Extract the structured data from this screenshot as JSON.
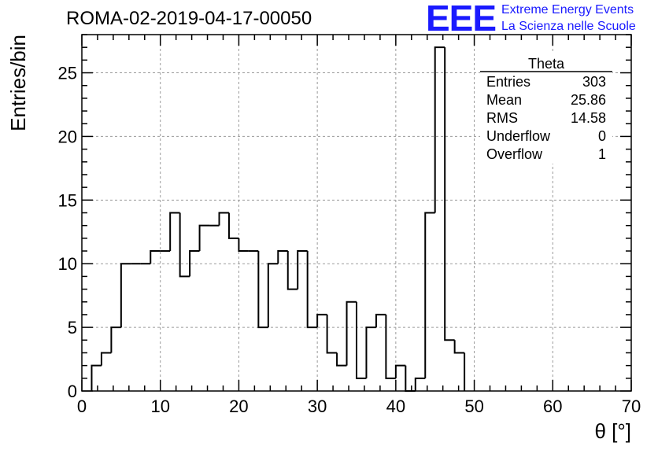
{
  "header": {
    "run_title": "ROMA-02-2019-04-17-00050",
    "logo_text": "EEE",
    "logo_line1": "Extreme Energy Events",
    "logo_line2": "La Scienza nelle Scuole",
    "logo_color": "#1a1aff"
  },
  "stats_box": {
    "name": "Theta",
    "rows": [
      {
        "label": "Entries",
        "value": "303"
      },
      {
        "label": "Mean",
        "value": "25.86"
      },
      {
        "label": "RMS",
        "value": "14.58"
      },
      {
        "label": "Underflow",
        "value": "0"
      },
      {
        "label": "Overflow",
        "value": "1"
      }
    ]
  },
  "chart_data": {
    "type": "bar",
    "histogram": true,
    "title": "",
    "xlabel": "θ [°]",
    "ylabel": "Entries/bin",
    "xlim": [
      0,
      70
    ],
    "ylim": [
      0,
      28
    ],
    "grid": true,
    "x_ticks": [
      0,
      10,
      20,
      30,
      40,
      50,
      60,
      70
    ],
    "y_ticks": [
      0,
      5,
      10,
      15,
      20,
      25
    ],
    "bin_width": 1.25,
    "bin_start": 1.25,
    "values": [
      2,
      3,
      5,
      10,
      10,
      10,
      11,
      11,
      14,
      9,
      11,
      13,
      13,
      14,
      12,
      11,
      11,
      5,
      10,
      11,
      8,
      11,
      5,
      6,
      3,
      2,
      7,
      1,
      5,
      6,
      1,
      2,
      0,
      1,
      14,
      27,
      4,
      3
    ]
  }
}
